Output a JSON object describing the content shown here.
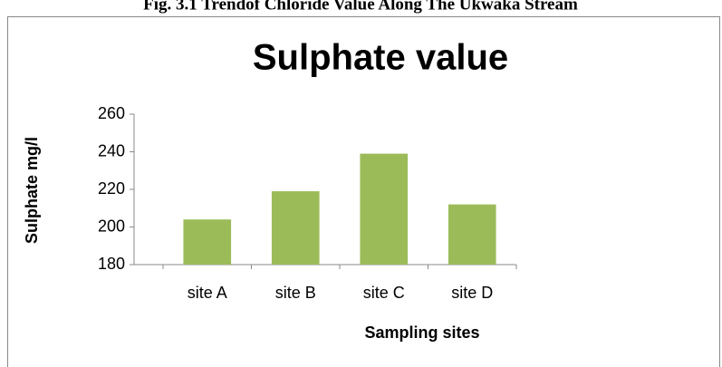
{
  "caption": "Fig. 3.1 Trendof Chloride Value Along The Ukwaka Stream",
  "chart_data": {
    "type": "bar",
    "title": "Sulphate value",
    "x_label": "Sampling sites",
    "y_label": "Sulphate mg/l",
    "categories": [
      "site A",
      "site B",
      "site C",
      "site D"
    ],
    "values": [
      204,
      219,
      239,
      212
    ],
    "color": "#9bbb59",
    "ylim": [
      180,
      260
    ],
    "yticks": [
      180,
      200,
      220,
      240,
      260
    ],
    "grid": false
  }
}
